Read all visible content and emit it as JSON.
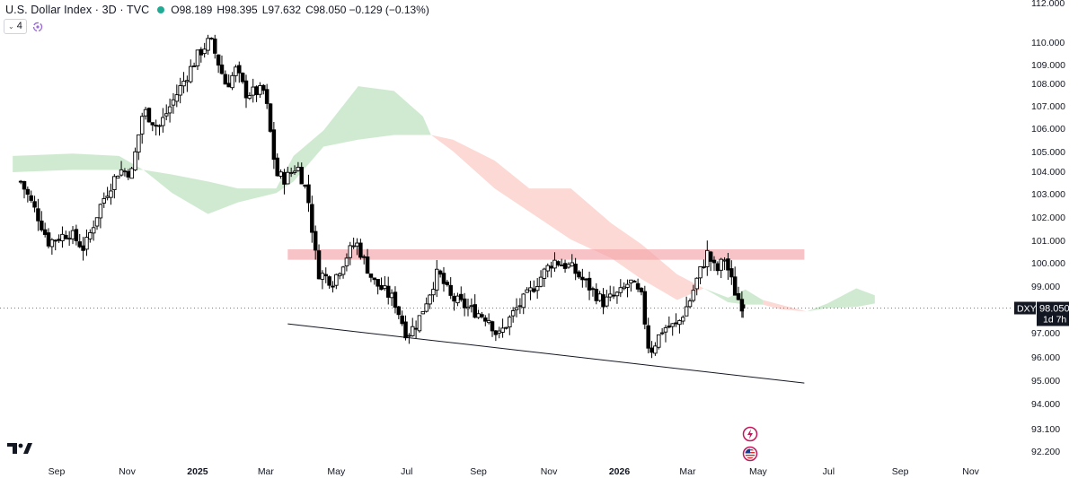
{
  "header": {
    "symbol": "U.S. Dollar Index · 3D · TVC",
    "open_label": "O",
    "open": "98.189",
    "high_label": "H",
    "high": "98.395",
    "low_label": "L",
    "low": "97.632",
    "close_label": "C",
    "close": "98.050",
    "change": "−0.129 (−0.13%)",
    "indicator_count": "4"
  },
  "price_label": {
    "ticker": "DXY",
    "price": "98.050",
    "countdown": "1d 7h",
    "value": 98.05
  },
  "colors": {
    "up": "#ffffff",
    "down": "#000000",
    "wick": "#000000",
    "cloud_bull": "#c8e6c9",
    "cloud_bear": "#fcd2ce",
    "zone": "#f5a3a9",
    "last_price_bg": "#131722",
    "live_dot": "#22ab94"
  },
  "icons": [
    "tradingview-logo-icon",
    "indicator-swirl-icon",
    "lightning-event-icon",
    "us-flag-event-icon",
    "chevron-down-icon"
  ],
  "chart_data": {
    "type": "candlestick",
    "timeframe": "3D",
    "y_ticks": [
      "112.000",
      "110.000",
      "109.000",
      "108.000",
      "107.000",
      "106.000",
      "105.000",
      "104.000",
      "103.000",
      "102.000",
      "101.000",
      "100.000",
      "99.000",
      "97.000",
      "96.000",
      "95.000",
      "94.000",
      "93.100",
      "92.200"
    ],
    "x_ticks": [
      "Sep",
      "Nov",
      "2025",
      "Mar",
      "May",
      "Jul",
      "Sep",
      "Nov",
      "2026",
      "Mar",
      "May",
      "Jul",
      "Sep",
      "Nov"
    ],
    "ylim": [
      92.0,
      112.0
    ],
    "annotations": {
      "resistance_zone": {
        "from": "2025-03-20",
        "to": "2026-06-10",
        "low": 100.13,
        "high": 100.58
      },
      "support_trendline": {
        "from": [
          "2025-03-20",
          97.37
        ],
        "to": [
          "2026-06-10",
          94.82
        ]
      },
      "last_price_line": 98.05
    },
    "ichimoku_cloud": [
      {
        "t": "2024-07-25",
        "a": 104.6,
        "b": 103.9
      },
      {
        "t": "2024-09-15",
        "a": 104.7,
        "b": 104.0
      },
      {
        "t": "2024-10-25",
        "a": 104.6,
        "b": 104.0
      },
      {
        "t": "2024-11-15",
        "a": 104.0,
        "b": 104.0
      },
      {
        "t": "2024-12-10",
        "a": 103.8,
        "b": 103.0
      },
      {
        "t": "2025-01-10",
        "a": 103.5,
        "b": 102.1
      },
      {
        "t": "2025-02-05",
        "a": 103.2,
        "b": 102.6
      },
      {
        "t": "2025-03-10",
        "a": 103.2,
        "b": 103.0
      },
      {
        "t": "2025-03-25",
        "a": 104.6,
        "b": 103.5
      },
      {
        "t": "2025-04-20",
        "a": 105.7,
        "b": 105.0
      },
      {
        "t": "2025-05-20",
        "a": 107.6,
        "b": 105.3
      },
      {
        "t": "2025-06-20",
        "a": 107.4,
        "b": 105.5
      },
      {
        "t": "2025-07-15",
        "a": 106.3,
        "b": 105.5
      },
      {
        "t": "2025-07-22",
        "a": 105.5,
        "b": 105.5
      },
      {
        "t": "2025-08-10",
        "a": 104.8,
        "b": 105.3
      },
      {
        "t": "2025-09-15",
        "a": 103.2,
        "b": 104.4
      },
      {
        "t": "2025-10-15",
        "a": 102.2,
        "b": 103.2
      },
      {
        "t": "2025-11-20",
        "a": 101.0,
        "b": 103.2
      },
      {
        "t": "2025-12-25",
        "a": 100.2,
        "b": 101.7
      },
      {
        "t": "2026-01-20",
        "a": 99.3,
        "b": 100.8
      },
      {
        "t": "2026-02-20",
        "a": 98.4,
        "b": 99.5
      },
      {
        "t": "2026-03-15",
        "a": 98.9,
        "b": 98.9
      },
      {
        "t": "2026-04-05",
        "a": 98.5,
        "b": 98.3
      },
      {
        "t": "2026-04-20",
        "a": 98.85,
        "b": 98.2
      },
      {
        "t": "2026-05-05",
        "a": 98.4,
        "b": 98.2
      },
      {
        "t": "2026-05-20",
        "a": 98.0,
        "b": 98.2
      },
      {
        "t": "2026-06-12",
        "a": 97.9,
        "b": 97.9
      },
      {
        "t": "2026-06-30",
        "a": 98.25,
        "b": 98.05
      },
      {
        "t": "2026-07-25",
        "a": 98.9,
        "b": 98.1
      },
      {
        "t": "2026-08-10",
        "a": 98.6,
        "b": 98.25
      }
    ],
    "anchors": [
      {
        "t": "2024-08-01",
        "v": 103.5
      },
      {
        "t": "2024-08-15",
        "v": 102.1
      },
      {
        "t": "2024-08-25",
        "v": 100.9
      },
      {
        "t": "2024-09-12",
        "v": 101.3
      },
      {
        "t": "2024-09-25",
        "v": 100.6
      },
      {
        "t": "2024-10-10",
        "v": 102.6
      },
      {
        "t": "2024-10-25",
        "v": 104.0
      },
      {
        "t": "2024-11-05",
        "v": 103.9
      },
      {
        "t": "2024-11-15",
        "v": 106.6
      },
      {
        "t": "2024-11-28",
        "v": 105.8
      },
      {
        "t": "2024-12-10",
        "v": 106.9
      },
      {
        "t": "2024-12-22",
        "v": 108.0
      },
      {
        "t": "2025-01-02",
        "v": 109.0
      },
      {
        "t": "2025-01-12",
        "v": 109.6
      },
      {
        "t": "2025-01-26",
        "v": 107.6
      },
      {
        "t": "2025-02-03",
        "v": 108.3
      },
      {
        "t": "2025-02-12",
        "v": 107.3
      },
      {
        "t": "2025-02-28",
        "v": 107.4
      },
      {
        "t": "2025-03-10",
        "v": 103.8
      },
      {
        "t": "2025-03-18",
        "v": 103.6
      },
      {
        "t": "2025-03-28",
        "v": 104.2
      },
      {
        "t": "2025-04-06",
        "v": 103.0
      },
      {
        "t": "2025-04-15",
        "v": 99.6
      },
      {
        "t": "2025-04-28",
        "v": 99.2
      },
      {
        "t": "2025-05-10",
        "v": 100.3
      },
      {
        "t": "2025-05-18",
        "v": 100.9
      },
      {
        "t": "2025-06-02",
        "v": 99.2
      },
      {
        "t": "2025-06-20",
        "v": 98.4
      },
      {
        "t": "2025-07-01",
        "v": 96.9
      },
      {
        "t": "2025-07-10",
        "v": 97.4
      },
      {
        "t": "2025-07-28",
        "v": 99.6
      },
      {
        "t": "2025-08-08",
        "v": 98.5
      },
      {
        "t": "2025-08-25",
        "v": 98.0
      },
      {
        "t": "2025-09-10",
        "v": 97.6
      },
      {
        "t": "2025-09-18",
        "v": 96.8
      },
      {
        "t": "2025-10-02",
        "v": 97.9
      },
      {
        "t": "2025-10-15",
        "v": 98.7
      },
      {
        "t": "2025-10-28",
        "v": 99.6
      },
      {
        "t": "2025-11-05",
        "v": 100.1
      },
      {
        "t": "2025-11-20",
        "v": 99.8
      },
      {
        "t": "2025-12-05",
        "v": 99.0
      },
      {
        "t": "2025-12-18",
        "v": 98.3
      },
      {
        "t": "2026-01-02",
        "v": 98.7
      },
      {
        "t": "2026-01-10",
        "v": 99.2
      },
      {
        "t": "2026-01-20",
        "v": 98.5
      },
      {
        "t": "2026-01-27",
        "v": 96.1
      },
      {
        "t": "2026-02-08",
        "v": 97.2
      },
      {
        "t": "2026-02-20",
        "v": 97.3
      },
      {
        "t": "2026-03-03",
        "v": 98.4
      },
      {
        "t": "2026-03-10",
        "v": 99.4
      },
      {
        "t": "2026-03-18",
        "v": 100.4
      },
      {
        "t": "2026-03-26",
        "v": 99.6
      },
      {
        "t": "2026-04-02",
        "v": 100.2
      },
      {
        "t": "2026-04-08",
        "v": 99.2
      },
      {
        "t": "2026-04-12",
        "v": 98.6
      },
      {
        "t": "2026-04-17",
        "v": 98.189
      }
    ],
    "last_candle": {
      "t": "2026-04-18",
      "o": 98.189,
      "h": 98.395,
      "l": 97.632,
      "c": 98.05
    }
  }
}
